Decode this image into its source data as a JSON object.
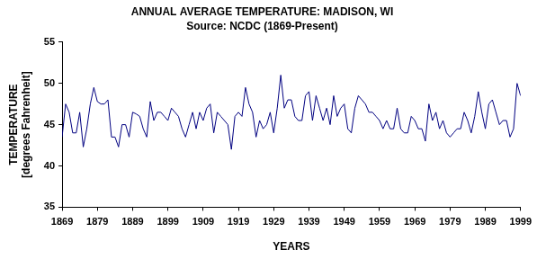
{
  "chart_data": {
    "type": "line",
    "title": "ANNUAL AVERAGE TEMPERATURE: MADISON, WI",
    "subtitle": "Source: NCDC (1869-Present)",
    "xlabel": "YEARS",
    "ylabel": [
      "TEMPERATURE",
      "[degrees Fahrenheit]"
    ],
    "x": [
      1869,
      1870,
      1871,
      1872,
      1873,
      1874,
      1875,
      1876,
      1877,
      1878,
      1879,
      1880,
      1881,
      1882,
      1883,
      1884,
      1885,
      1886,
      1887,
      1888,
      1889,
      1890,
      1891,
      1892,
      1893,
      1894,
      1895,
      1896,
      1897,
      1898,
      1899,
      1900,
      1901,
      1902,
      1903,
      1904,
      1905,
      1906,
      1907,
      1908,
      1909,
      1910,
      1911,
      1912,
      1913,
      1914,
      1915,
      1916,
      1917,
      1918,
      1919,
      1920,
      1921,
      1922,
      1923,
      1924,
      1925,
      1926,
      1927,
      1928,
      1929,
      1930,
      1931,
      1932,
      1933,
      1934,
      1935,
      1936,
      1937,
      1938,
      1939,
      1940,
      1941,
      1942,
      1943,
      1944,
      1945,
      1946,
      1947,
      1948,
      1949,
      1950,
      1951,
      1952,
      1953,
      1954,
      1955,
      1956,
      1957,
      1958,
      1959,
      1960,
      1961,
      1962,
      1963,
      1964,
      1965,
      1966,
      1967,
      1968,
      1969,
      1970,
      1971,
      1972,
      1973,
      1974,
      1975,
      1976,
      1977,
      1978,
      1979,
      1980,
      1981,
      1982,
      1983,
      1984,
      1985,
      1986,
      1987,
      1988,
      1989,
      1990,
      1991,
      1992,
      1993,
      1994,
      1995,
      1996,
      1997,
      1998,
      1999
    ],
    "values": [
      43.5,
      47.5,
      46.5,
      44,
      44,
      46.5,
      42.3,
      44.5,
      47.5,
      49.5,
      47.8,
      47.5,
      47.5,
      48,
      43.5,
      43.5,
      42.3,
      45,
      45,
      43.5,
      46.5,
      46.3,
      46,
      44.5,
      43.5,
      47.8,
      45.5,
      46.5,
      46.5,
      46,
      45.5,
      47,
      46.5,
      46,
      44.5,
      43.5,
      45,
      46.5,
      44.5,
      46.5,
      45.5,
      47,
      47.5,
      44,
      46.5,
      46,
      45.5,
      45,
      42,
      46,
      46.5,
      46,
      49.5,
      47.5,
      46.5,
      43.5,
      45.5,
      44.5,
      45,
      46.5,
      44,
      47,
      51,
      47,
      48,
      48,
      46,
      45.5,
      45.5,
      48.5,
      49,
      45.5,
      48.5,
      47,
      45.5,
      47,
      45,
      48.5,
      46,
      47,
      47.5,
      44.5,
      44,
      47,
      48.5,
      48,
      47.5,
      46.5,
      46.5,
      46,
      45.5,
      44.5,
      45.5,
      44.5,
      44.5,
      47,
      44.5,
      44,
      44,
      46,
      45.5,
      44.5,
      44.5,
      43,
      47.5,
      45.5,
      46.5,
      44.5,
      45.5,
      44,
      43.5,
      44,
      44.5,
      44.5,
      46.5,
      45.5,
      44,
      46,
      49,
      46.5,
      44.5,
      47.5,
      48,
      46.5,
      45,
      45.5,
      45.5,
      43.5,
      44.5,
      50,
      48.5
    ],
    "color": "#000080",
    "xlim": [
      1869,
      1999
    ],
    "xticks": [
      1869,
      1879,
      1889,
      1899,
      1909,
      1919,
      1929,
      1939,
      1949,
      1959,
      1969,
      1979,
      1989,
      1999
    ],
    "ylim": [
      35,
      55
    ],
    "yticks": [
      35,
      40,
      45,
      50,
      55
    ],
    "grid": false
  }
}
